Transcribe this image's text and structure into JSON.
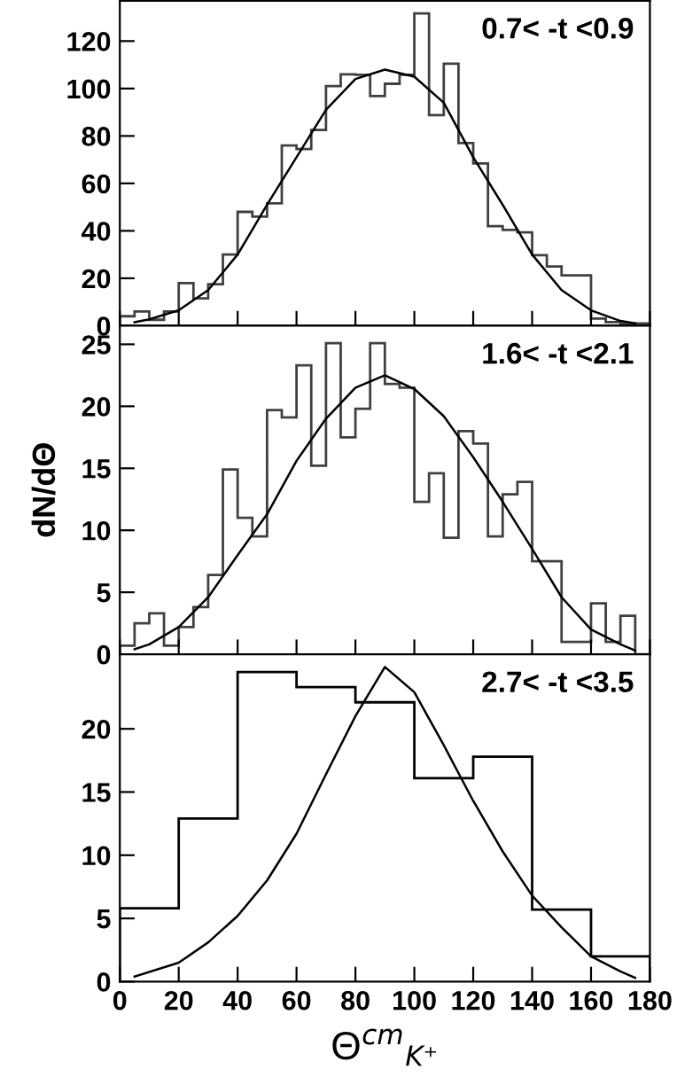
{
  "chart_data": [
    {
      "type": "histogram",
      "annotations": [
        "0.7< -t <0.9"
      ],
      "xlim": [
        0,
        180
      ],
      "xticks": [
        0,
        20,
        40,
        60,
        80,
        100,
        120,
        140,
        160,
        180
      ],
      "ylim": [
        0,
        137
      ],
      "yticks": [
        0,
        20,
        40,
        60,
        80,
        100,
        120
      ],
      "tick_labels": "y",
      "grid": false,
      "legend": false,
      "series": [
        {
          "color": "#404040",
          "bins": [
            0,
            5,
            10,
            15,
            20,
            25,
            30,
            35,
            40,
            45,
            50,
            55,
            60,
            65,
            70,
            75,
            80,
            85,
            90,
            95,
            100,
            105,
            110,
            115,
            120,
            125,
            130,
            135,
            140,
            145,
            150,
            155,
            160,
            165,
            170,
            175,
            180
          ],
          "values": [
            4,
            6,
            2.5,
            6,
            18,
            11.5,
            17.5,
            30,
            48,
            46,
            51.6,
            76,
            74.5,
            82.5,
            101,
            106,
            105.8,
            96.8,
            102,
            105.8,
            131.7,
            88.8,
            110.5,
            77,
            68.4,
            42,
            40.4,
            39.4,
            29.7,
            25,
            21.2,
            21.2,
            3,
            1.5,
            1,
            1
          ]
        },
        {
          "type": "line",
          "color": "#000000",
          "x": [
            5,
            10,
            20,
            30,
            40,
            50,
            60,
            70,
            80,
            90,
            100,
            110,
            120,
            130,
            140,
            150,
            160,
            170,
            175
          ],
          "values": [
            1.5,
            2.7,
            6.5,
            15,
            30,
            51,
            71,
            91,
            104,
            108,
            105,
            94,
            71,
            51,
            30,
            15,
            6.5,
            2,
            1
          ]
        }
      ]
    },
    {
      "type": "histogram",
      "annotations": [
        "1.6< -t <2.1"
      ],
      "ylabel": "dN/dΘ",
      "xlim": [
        0,
        180
      ],
      "xticks": [
        0,
        20,
        40,
        60,
        80,
        100,
        120,
        140,
        160,
        180
      ],
      "ylim": [
        0,
        26.5
      ],
      "yticks": [
        0,
        5,
        10,
        15,
        20,
        25
      ],
      "tick_labels": "y",
      "grid": false,
      "legend": false,
      "series": [
        {
          "color": "#404040",
          "bins": [
            0,
            5,
            10,
            15,
            20,
            25,
            30,
            35,
            40,
            45,
            50,
            55,
            60,
            65,
            70,
            75,
            80,
            85,
            90,
            95,
            100,
            105,
            110,
            115,
            120,
            125,
            130,
            135,
            140,
            145,
            150,
            155,
            160,
            165,
            170,
            175,
            180
          ],
          "values": [
            0.7,
            2.5,
            3.3,
            0.7,
            2.2,
            3.8,
            6.4,
            14.9,
            11,
            9.5,
            19.7,
            19.1,
            23.3,
            15.2,
            25.1,
            17.5,
            19.8,
            25.1,
            21.8,
            21.5,
            12.3,
            14.6,
            9.4,
            18,
            17,
            9.5,
            12.9,
            13.9,
            7.5,
            7.5,
            1,
            1,
            4.1,
            1,
            3.1,
            0
          ]
        },
        {
          "type": "line",
          "color": "#000000",
          "x": [
            5,
            10,
            20,
            30,
            40,
            50,
            60,
            70,
            80,
            90,
            100,
            110,
            120,
            130,
            140,
            150,
            160,
            170,
            175
          ],
          "values": [
            0.4,
            0.8,
            2.2,
            4.6,
            8,
            11.3,
            15.6,
            19,
            21.5,
            22.5,
            21.4,
            19.2,
            15.9,
            12.3,
            8.5,
            4.6,
            2,
            0.8,
            0.3
          ]
        }
      ]
    },
    {
      "type": "histogram",
      "annotations": [
        "2.7< -t <3.5"
      ],
      "xlabel": "Θ$^{cm}$$_{K⁺}$",
      "xlim": [
        0,
        180
      ],
      "xticks": [
        0,
        20,
        40,
        60,
        80,
        100,
        120,
        140,
        160,
        180
      ],
      "ylim": [
        0,
        25.9
      ],
      "yticks": [
        0,
        5,
        10,
        15,
        20
      ],
      "grid": false,
      "legend": false,
      "series": [
        {
          "color": "#000000",
          "bins": [
            0,
            20,
            40,
            60,
            80,
            100,
            120,
            140,
            160,
            180
          ],
          "values": [
            5.8,
            12.9,
            24.5,
            23.3,
            22.1,
            16.1,
            17.8,
            5.7,
            2
          ]
        },
        {
          "type": "line",
          "color": "#000000",
          "x": [
            5,
            20,
            30,
            40,
            50,
            60,
            70,
            80,
            90,
            100,
            110,
            120,
            130,
            140,
            150,
            160,
            170,
            175
          ],
          "values": [
            0.4,
            1.5,
            3.1,
            5.2,
            8,
            11.7,
            16.4,
            21,
            24.9,
            22.9,
            18.7,
            14.3,
            10.3,
            6.8,
            4.3,
            2,
            0.8,
            0.3
          ]
        }
      ]
    }
  ]
}
